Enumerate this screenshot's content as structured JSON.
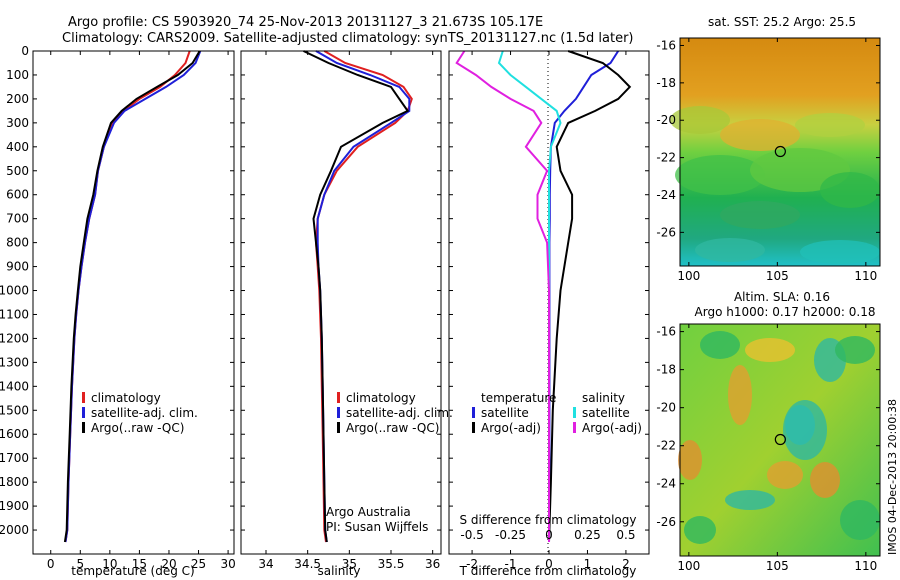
{
  "title": {
    "line1": "Argo profile: CS 5903920_74 25-Nov-2013 20131127_3 21.673S 105.17E",
    "line2": "Climatology: CARS2009. Satellite-adjusted climatology: synTS_20131127.nc (1.5d later)"
  },
  "credit": "IMOS 04-Dec-2013 20:00:38",
  "colors": {
    "climatology": "#e02020",
    "satellite": "#1f1fd8",
    "argo": "#000000",
    "sat_salinity": "#20e0e0",
    "argo_salinity": "#e020e0"
  },
  "chart_data": [
    {
      "id": "temperature",
      "type": "line",
      "xlabel": "temperature (deg C)",
      "ylabel": "",
      "xlim": [
        -3,
        31
      ],
      "ylim": [
        2100,
        0
      ],
      "xticks": [
        "0",
        "5",
        "10",
        "15",
        "20",
        "25",
        "30"
      ],
      "yticks": [
        "0",
        "100",
        "200",
        "300",
        "400",
        "500",
        "600",
        "700",
        "800",
        "900",
        "1000",
        "1100",
        "1200",
        "1300",
        "1400",
        "1500",
        "1600",
        "1700",
        "1800",
        "1900",
        "2000"
      ],
      "legend": [
        "climatology",
        "satellite-adj. clim.",
        "Argo(..raw -QC)"
      ],
      "series": [
        {
          "name": "climatology",
          "color": "#e02020",
          "x": [
            23.5,
            22.8,
            21.0,
            18.5,
            15.0,
            12.3,
            10.5,
            9.0,
            8.0,
            7.5,
            6.5,
            5.8,
            5.2,
            4.7,
            4.3,
            4.0,
            3.6,
            3.3,
            3.0,
            2.8,
            2.5
          ],
          "y": [
            0,
            50,
            100,
            150,
            200,
            250,
            300,
            400,
            500,
            600,
            700,
            800,
            900,
            1000,
            1100,
            1200,
            1400,
            1600,
            1800,
            2000,
            2050
          ]
        },
        {
          "name": "satellite-adj. clim.",
          "color": "#1f1fd8",
          "x": [
            25.3,
            24.5,
            22.5,
            19.5,
            16.0,
            12.5,
            10.7,
            9.0,
            8.0,
            7.5,
            6.5,
            5.8,
            5.2,
            4.7,
            4.3,
            4.0,
            3.6,
            3.3,
            3.0,
            2.8,
            2.5
          ],
          "y": [
            0,
            50,
            100,
            150,
            200,
            250,
            300,
            400,
            500,
            600,
            700,
            800,
            900,
            1000,
            1100,
            1200,
            1400,
            1600,
            1800,
            2000,
            2050
          ]
        },
        {
          "name": "Argo(..raw -QC)",
          "color": "#000000",
          "x": [
            25.2,
            24.0,
            21.5,
            18.0,
            14.5,
            12.0,
            10.2,
            8.8,
            7.9,
            7.2,
            6.2,
            5.6,
            5.0,
            4.6,
            4.2,
            3.9,
            3.5,
            3.2,
            2.9,
            2.7,
            2.4
          ],
          "y": [
            0,
            50,
            100,
            150,
            200,
            250,
            300,
            400,
            500,
            600,
            700,
            800,
            900,
            1000,
            1100,
            1200,
            1400,
            1600,
            1800,
            2000,
            2050
          ]
        }
      ]
    },
    {
      "id": "salinity",
      "type": "line",
      "xlabel": "salinity",
      "xlim": [
        33.7,
        36.1
      ],
      "ylim": [
        2100,
        0
      ],
      "xticks": [
        "34",
        "34.5",
        "35",
        "35.5",
        "36"
      ],
      "legend": [
        "climatology",
        "satellite-adj. clim.",
        "Argo(..raw -QC)"
      ],
      "annotation": [
        "Argo Australia",
        "PI: Susan Wijffels"
      ],
      "series": [
        {
          "name": "climatology",
          "color": "#e02020",
          "x": [
            34.7,
            34.95,
            35.4,
            35.65,
            35.75,
            35.7,
            35.55,
            35.1,
            34.85,
            34.7,
            34.62,
            34.6,
            34.62,
            34.64,
            34.66,
            34.67,
            34.68,
            34.69,
            34.7,
            34.72
          ],
          "y": [
            0,
            50,
            100,
            150,
            200,
            250,
            300,
            400,
            500,
            600,
            700,
            800,
            900,
            1000,
            1200,
            1400,
            1600,
            1800,
            2000,
            2050
          ]
        },
        {
          "name": "satellite-adj. clim.",
          "color": "#1f1fd8",
          "x": [
            34.6,
            34.85,
            35.25,
            35.6,
            35.72,
            35.72,
            35.5,
            35.05,
            34.82,
            34.7,
            34.62,
            34.62,
            34.63,
            34.65,
            34.67,
            34.68,
            34.69,
            34.7,
            34.71,
            34.73
          ],
          "y": [
            0,
            50,
            100,
            150,
            200,
            250,
            300,
            400,
            500,
            600,
            700,
            800,
            900,
            1000,
            1200,
            1400,
            1600,
            1800,
            2000,
            2050
          ]
        },
        {
          "name": "Argo(..raw -QC)",
          "color": "#000000",
          "x": [
            34.45,
            34.75,
            35.1,
            35.5,
            35.6,
            35.7,
            35.4,
            34.9,
            34.78,
            34.65,
            34.57,
            34.6,
            34.63,
            34.65,
            34.67,
            34.68,
            34.69,
            34.7,
            34.71,
            34.73
          ],
          "y": [
            0,
            50,
            100,
            150,
            200,
            250,
            300,
            400,
            500,
            600,
            700,
            800,
            900,
            1000,
            1200,
            1400,
            1600,
            1800,
            2000,
            2050
          ]
        }
      ]
    },
    {
      "id": "difference",
      "type": "line",
      "xlabel": "T difference from climatology",
      "top_label": "S difference from climatology",
      "xlim": [
        -2.6,
        2.6
      ],
      "ylim": [
        2100,
        0
      ],
      "xticks": [
        "-2",
        "-1",
        "0",
        "1",
        "2"
      ],
      "top_ticks": [
        "-0.5",
        "-0.25",
        "0",
        "0.25",
        "0.5"
      ],
      "legend": {
        "temperature": {
          "title": "temperature",
          "items": [
            "satellite",
            "Argo(-adj)"
          ]
        },
        "salinity": {
          "title": "salinity",
          "items": [
            "satellite",
            "Argo(-adj)"
          ]
        }
      },
      "series": [
        {
          "name": "satellite",
          "color": "#1f1fd8",
          "x": [
            1.8,
            1.6,
            1.1,
            0.9,
            0.7,
            0.4,
            0.15,
            0.05,
            0.03,
            0.02,
            0.02,
            0.01,
            0.01,
            0.01,
            0.01,
            0.01,
            0.0
          ],
          "y": [
            0,
            50,
            100,
            150,
            200,
            250,
            300,
            400,
            500,
            600,
            700,
            800,
            1000,
            1200,
            1500,
            1800,
            2050
          ]
        },
        {
          "name": "Argo(-adj)",
          "color": "#000000",
          "x": [
            0.5,
            1.4,
            1.8,
            2.1,
            1.8,
            1.2,
            0.5,
            0.2,
            0.3,
            0.6,
            0.6,
            0.5,
            0.3,
            0.2,
            0.1,
            0.05,
            0.0
          ],
          "y": [
            0,
            50,
            100,
            150,
            200,
            250,
            300,
            400,
            500,
            600,
            700,
            800,
            1000,
            1200,
            1500,
            1800,
            2050
          ]
        },
        {
          "name": "satellite (salinity)",
          "color": "#20e0e0",
          "x": [
            -1.2,
            -1.3,
            -1.0,
            -0.6,
            -0.2,
            0.2,
            0.3,
            0.05,
            0.0,
            0.0,
            0.0,
            0.0,
            0.0,
            0.0,
            0.0,
            0.0,
            0.0
          ],
          "y": [
            0,
            50,
            100,
            150,
            200,
            250,
            300,
            400,
            500,
            600,
            700,
            800,
            1000,
            1200,
            1500,
            1800,
            2050
          ]
        },
        {
          "name": "Argo(-adj) (salinity)",
          "color": "#e020e0",
          "x": [
            -2.2,
            -2.4,
            -1.9,
            -1.5,
            -1.0,
            -0.4,
            -0.2,
            -0.6,
            -0.05,
            -0.3,
            -0.3,
            -0.05,
            0.0,
            0.0,
            0.0,
            0.0,
            0.0
          ],
          "y": [
            0,
            50,
            100,
            150,
            200,
            250,
            300,
            400,
            500,
            600,
            700,
            800,
            1000,
            1200,
            1500,
            1800,
            2050
          ]
        }
      ]
    },
    {
      "id": "sst-map",
      "type": "heatmap",
      "title": "sat. SST: 25.2  Argo: 25.5",
      "xlim": [
        99.5,
        110.8
      ],
      "ylim": [
        -27.8,
        -15.6
      ],
      "xticks": [
        "100",
        "105",
        "110"
      ],
      "yticks": [
        "-16",
        "-18",
        "-20",
        "-22",
        "-24",
        "-26"
      ],
      "marker": {
        "lon": 105.17,
        "lat": -21.673
      }
    },
    {
      "id": "sla-map",
      "type": "heatmap",
      "title": [
        "Altim. SLA: 0.16",
        "Argo h1000: 0.17 h2000: 0.18"
      ],
      "xlim": [
        99.5,
        110.8
      ],
      "ylim": [
        -27.8,
        -15.6
      ],
      "xticks": [
        "100",
        "105",
        "110"
      ],
      "yticks": [
        "-16",
        "-18",
        "-20",
        "-22",
        "-24",
        "-26"
      ],
      "marker": {
        "lon": 105.17,
        "lat": -21.673
      }
    }
  ]
}
